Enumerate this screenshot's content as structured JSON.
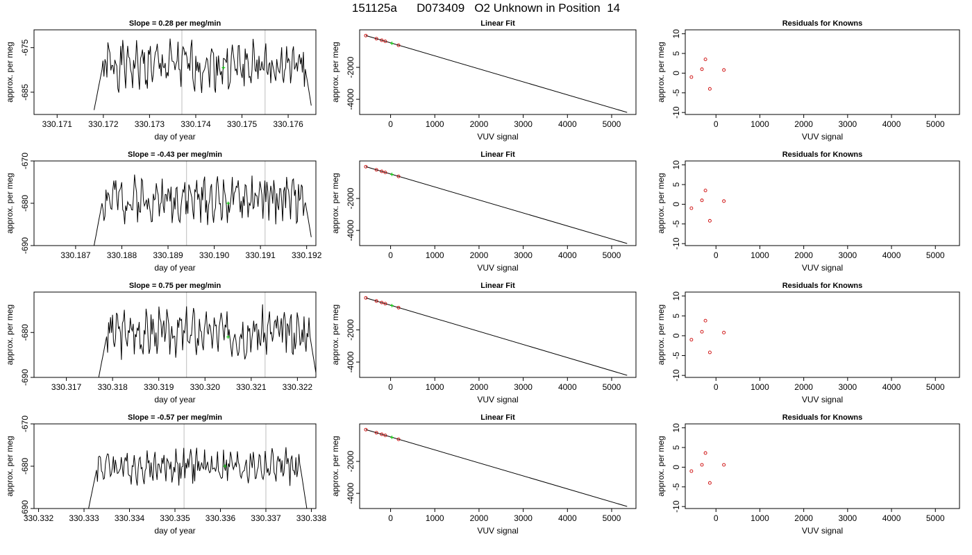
{
  "figure": {
    "title": "151125a      D073409   O2 Unknown in Position  14"
  },
  "colors": {
    "trace": "#000000",
    "unknown_marker": "#00cc00",
    "known_marker": "#cc0000",
    "window_line": "#c8c8c8"
  },
  "chart_data": [
    {
      "type": "line",
      "row": 0,
      "col": 0,
      "title": "Slope =  0.28  per meg/min",
      "xlabel": "day of year",
      "ylabel": "approx. per meg",
      "xlim": [
        330.1705,
        330.1766
      ],
      "ylim": [
        -690,
        -671
      ],
      "xticks": [
        "330.171",
        "330.172",
        "330.173",
        "330.174",
        "330.175",
        "330.176"
      ],
      "yticks": [
        "-675",
        "-685"
      ],
      "grid": false,
      "window_lines_x": [
        330.1737,
        330.1755
      ],
      "unknown_point": {
        "x": 330.1746,
        "y": -679.5
      },
      "trace": {
        "x_start": 330.1718,
        "x_end": 330.1765,
        "y_start": -689,
        "y_end": -688,
        "baseline": -679,
        "amplitude": 5,
        "seed": 1
      }
    },
    {
      "type": "line",
      "row": 1,
      "col": 0,
      "title": "Slope =  -0.43  per meg/min",
      "xlabel": "day of year",
      "ylabel": "approx. per meg",
      "xlim": [
        330.1861,
        330.1922
      ],
      "ylim": [
        -690,
        -670
      ],
      "xticks": [
        "330.187",
        "330.188",
        "330.189",
        "330.190",
        "330.191",
        "330.192"
      ],
      "yticks": [
        "-670",
        "-680",
        "-690"
      ],
      "grid": false,
      "window_lines_x": [
        330.1894,
        330.1911
      ],
      "unknown_point": {
        "x": 330.1903,
        "y": -680
      },
      "trace": {
        "x_start": 330.1874,
        "x_end": 330.1921,
        "y_start": -690,
        "y_end": -688,
        "baseline": -679,
        "amplitude": 5,
        "seed": 2
      }
    },
    {
      "type": "line",
      "row": 2,
      "col": 0,
      "title": "Slope =  0.75  per meg/min",
      "xlabel": "day of year",
      "ylabel": "approx. per meg",
      "xlim": [
        330.3163,
        330.3224
      ],
      "ylim": [
        -690,
        -671
      ],
      "xticks": [
        "330.317",
        "330.318",
        "330.319",
        "330.320",
        "330.321",
        "330.322"
      ],
      "yticks": [
        "-680",
        "-690"
      ],
      "grid": false,
      "window_lines_x": [
        330.3196,
        330.3213
      ],
      "unknown_point": {
        "x": 330.3205,
        "y": -681
      },
      "trace": {
        "x_start": 330.3177,
        "x_end": 330.3224,
        "y_start": -690,
        "y_end": -689,
        "baseline": -680,
        "amplitude": 5,
        "seed": 3
      }
    },
    {
      "type": "line",
      "row": 3,
      "col": 0,
      "title": "Slope =  -0.57  per meg/min",
      "xlabel": "day of year",
      "ylabel": "approx. per meg",
      "xlim": [
        330.3319,
        330.3381
      ],
      "ylim": [
        -690,
        -670
      ],
      "xticks": [
        "330.332",
        "330.333",
        "330.334",
        "330.335",
        "330.336",
        "330.337",
        "330.338"
      ],
      "yticks": [
        "-670",
        "-680",
        "-690"
      ],
      "grid": false,
      "window_lines_x": [
        330.3352,
        330.337
      ],
      "unknown_point": {
        "x": 330.3361,
        "y": -680
      },
      "trace": {
        "x_start": 330.3331,
        "x_end": 330.3379,
        "y_start": -690,
        "y_end": -690,
        "baseline": -680,
        "amplitude": 4,
        "seed": 4
      }
    },
    {
      "type": "scatter",
      "row": 0,
      "col": 1,
      "title": "Linear Fit",
      "xlabel": "VUV signal",
      "ylabel": "approx. per meg",
      "xlim": [
        -700,
        5550
      ],
      "ylim": [
        -4950,
        350
      ],
      "xticks": [
        "0",
        "1000",
        "2000",
        "3000",
        "4000",
        "5000"
      ],
      "yticks": [
        "-2000",
        "-4000"
      ],
      "fit_line": {
        "x": [
          -560,
          5350
        ],
        "y": [
          -10,
          -4820
        ]
      },
      "known_points": {
        "x": [
          -560,
          -320,
          -200,
          -120,
          180
        ],
        "y": [
          -10,
          -205,
          -300,
          -370,
          -615
        ]
      },
      "unknown_point": {
        "x": 30,
        "y": -490
      }
    },
    {
      "type": "scatter",
      "row": 1,
      "col": 1,
      "title": "Linear Fit",
      "xlabel": "VUV signal",
      "ylabel": "approx. per meg",
      "xlim": [
        -700,
        5550
      ],
      "ylim": [
        -4950,
        350
      ],
      "xticks": [
        "0",
        "1000",
        "2000",
        "3000",
        "4000",
        "5000"
      ],
      "yticks": [
        "-2000",
        "-4000"
      ],
      "fit_line": {
        "x": [
          -560,
          5350
        ],
        "y": [
          -10,
          -4820
        ]
      },
      "known_points": {
        "x": [
          -560,
          -320,
          -200,
          -120,
          180
        ],
        "y": [
          -10,
          -205,
          -300,
          -370,
          -615
        ]
      },
      "unknown_point": {
        "x": 30,
        "y": -490
      }
    },
    {
      "type": "scatter",
      "row": 2,
      "col": 1,
      "title": "Linear Fit",
      "xlabel": "VUV signal",
      "ylabel": "approx. per meg",
      "xlim": [
        -700,
        5550
      ],
      "ylim": [
        -4950,
        350
      ],
      "xticks": [
        "0",
        "1000",
        "2000",
        "3000",
        "4000",
        "5000"
      ],
      "yticks": [
        "-2000",
        "-4000"
      ],
      "fit_line": {
        "x": [
          -560,
          5350
        ],
        "y": [
          -10,
          -4820
        ]
      },
      "known_points": {
        "x": [
          -560,
          -320,
          -200,
          -120,
          180
        ],
        "y": [
          -10,
          -205,
          -300,
          -370,
          -615
        ]
      },
      "unknown_point": {
        "x": 30,
        "y": -490
      }
    },
    {
      "type": "scatter",
      "row": 3,
      "col": 1,
      "title": "Linear Fit",
      "xlabel": "VUV signal",
      "ylabel": "approx. per meg",
      "xlim": [
        -700,
        5550
      ],
      "ylim": [
        -4950,
        350
      ],
      "xticks": [
        "0",
        "1000",
        "2000",
        "3000",
        "4000",
        "5000"
      ],
      "yticks": [
        "-2000",
        "-4000"
      ],
      "fit_line": {
        "x": [
          -560,
          5350
        ],
        "y": [
          -10,
          -4820
        ]
      },
      "known_points": {
        "x": [
          -560,
          -320,
          -200,
          -120,
          180
        ],
        "y": [
          -10,
          -205,
          -300,
          -370,
          -615
        ]
      },
      "unknown_point": {
        "x": 30,
        "y": -490
      }
    },
    {
      "type": "scatter",
      "row": 0,
      "col": 2,
      "title": "Residuals for Knowns",
      "xlabel": "VUV signal",
      "ylabel": "approx. per meg",
      "xlim": [
        -700,
        5550
      ],
      "ylim": [
        -10.5,
        11
      ],
      "xticks": [
        "0",
        "1000",
        "2000",
        "3000",
        "4000",
        "5000"
      ],
      "yticks": [
        "10",
        "5",
        "0",
        "-5",
        "-10"
      ],
      "known_points": {
        "x": [
          -560,
          -320,
          -240,
          -140,
          180
        ],
        "y": [
          -1,
          1,
          3.5,
          -4,
          0.8
        ]
      }
    },
    {
      "type": "scatter",
      "row": 1,
      "col": 2,
      "title": "Residuals for Knowns",
      "xlabel": "VUV signal",
      "ylabel": "approx. per meg",
      "xlim": [
        -700,
        5550
      ],
      "ylim": [
        -10.5,
        11
      ],
      "xticks": [
        "0",
        "1000",
        "2000",
        "3000",
        "4000",
        "5000"
      ],
      "yticks": [
        "10",
        "5",
        "0",
        "-5",
        "-10"
      ],
      "known_points": {
        "x": [
          -560,
          -320,
          -240,
          -140,
          180
        ],
        "y": [
          -1,
          1,
          3.5,
          -4.2,
          0.8
        ]
      }
    },
    {
      "type": "scatter",
      "row": 2,
      "col": 2,
      "title": "Residuals for Knowns",
      "xlabel": "VUV signal",
      "ylabel": "approx. per meg",
      "xlim": [
        -700,
        5550
      ],
      "ylim": [
        -10.5,
        11
      ],
      "xticks": [
        "0",
        "1000",
        "2000",
        "3000",
        "4000",
        "5000"
      ],
      "yticks": [
        "10",
        "5",
        "0",
        "-5",
        "-10"
      ],
      "known_points": {
        "x": [
          -560,
          -320,
          -240,
          -140,
          180
        ],
        "y": [
          -1,
          1,
          3.8,
          -4.2,
          0.8
        ]
      }
    },
    {
      "type": "scatter",
      "row": 3,
      "col": 2,
      "title": "Residuals for Knowns",
      "xlabel": "VUV signal",
      "ylabel": "approx. per meg",
      "xlim": [
        -700,
        5550
      ],
      "ylim": [
        -10.5,
        11
      ],
      "xticks": [
        "0",
        "1000",
        "2000",
        "3000",
        "4000",
        "5000"
      ],
      "yticks": [
        "10",
        "5",
        "0",
        "-5",
        "-10"
      ],
      "known_points": {
        "x": [
          -560,
          -320,
          -240,
          -140,
          180
        ],
        "y": [
          -1,
          0.6,
          3.6,
          -4,
          0.6
        ]
      }
    }
  ]
}
